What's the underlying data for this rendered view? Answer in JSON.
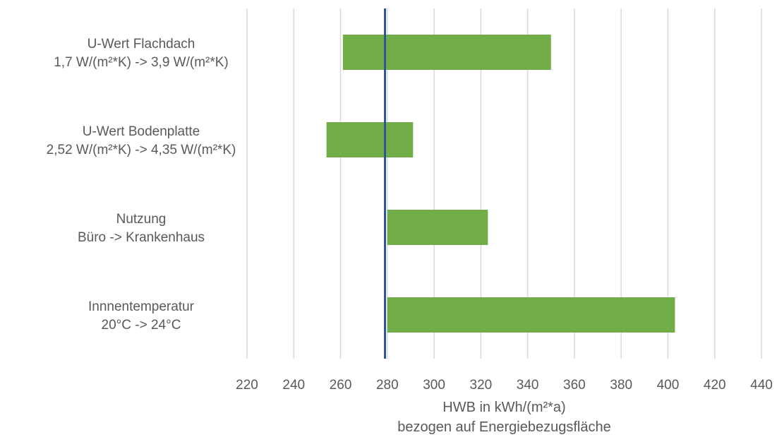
{
  "chart_data": {
    "type": "bar",
    "orientation": "horizontal",
    "subtype": "tornado",
    "baseline": 279,
    "categories": [
      [
        "U-Wert Flachdach",
        "1,7 W/(m²*K) -> 3,9 W/(m²*K)"
      ],
      [
        "U-Wert Bodenplatte",
        "2,52 W/(m²*K) -> 4,35 W/(m²*K)"
      ],
      [
        "Nutzung",
        "Büro -> Krankenhaus"
      ],
      [
        "Innnentemperatur",
        "20°C -> 24°C"
      ]
    ],
    "ranges": [
      [
        261,
        350
      ],
      [
        254,
        291
      ],
      [
        280,
        323
      ],
      [
        280,
        403
      ]
    ],
    "xlabel": [
      "HWB in kWh/(m²*a)",
      "bezogen auf Energiebezugsfläche"
    ],
    "xlim": [
      220,
      440
    ],
    "xticks": [
      220,
      240,
      260,
      280,
      300,
      320,
      340,
      360,
      380,
      400,
      420,
      440
    ],
    "grid": true,
    "legend": "none",
    "colors": {
      "bar": "#70ad47",
      "baseline": "#2f5597",
      "grid": "#d9d9d9",
      "text": "#595959"
    }
  }
}
